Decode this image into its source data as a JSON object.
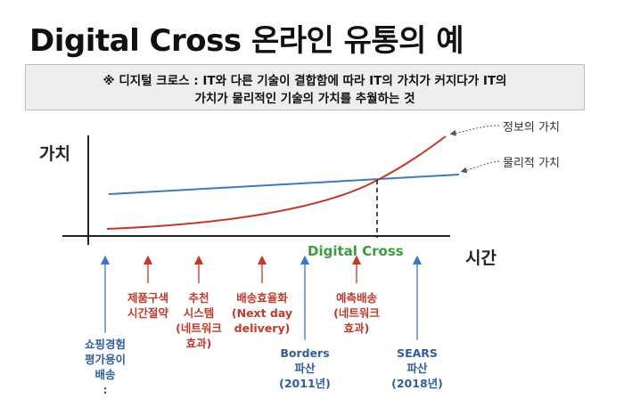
{
  "title": "Digital Cross 온라인 유통의 예",
  "note": {
    "line1": "※ 디지털 크로스 : IT와 다른 기술이 결합함에 따라 IT의 가치가 커지다가 IT의",
    "line2": "가치가 물리적인 기술의 가치를 추월하는 것"
  },
  "axes": {
    "y_label": "가치",
    "x_label": "시간"
  },
  "legend": {
    "info_value": "정보의 가치",
    "physical_value": "물리적 가치"
  },
  "cross_label": "Digital Cross",
  "colors": {
    "info_curve": "#c0392b",
    "physical_line": "#3a7bbf",
    "cross_text": "#3d9a3d"
  },
  "events": [
    {
      "id": "shopping",
      "color": "blue",
      "lines": [
        "쇼핑경험",
        "평가용이",
        "배송",
        ":"
      ]
    },
    {
      "id": "product",
      "color": "red",
      "lines": [
        "제품구색",
        "시간절약"
      ]
    },
    {
      "id": "recommend",
      "color": "red",
      "lines": [
        "추천",
        "시스템",
        "(네트워크",
        "효과)"
      ]
    },
    {
      "id": "delivery",
      "color": "red",
      "lines": [
        "배송효율화",
        "(Next day",
        "delivery)"
      ]
    },
    {
      "id": "borders",
      "color": "blue",
      "lines": [
        "Borders",
        "파산",
        "(2011년)"
      ]
    },
    {
      "id": "predict",
      "color": "red",
      "lines": [
        "예측배송",
        "(네트워크",
        "효과)"
      ]
    },
    {
      "id": "sears",
      "color": "blue",
      "lines": [
        "SEARS",
        "파산",
        "(2018년)"
      ]
    }
  ]
}
